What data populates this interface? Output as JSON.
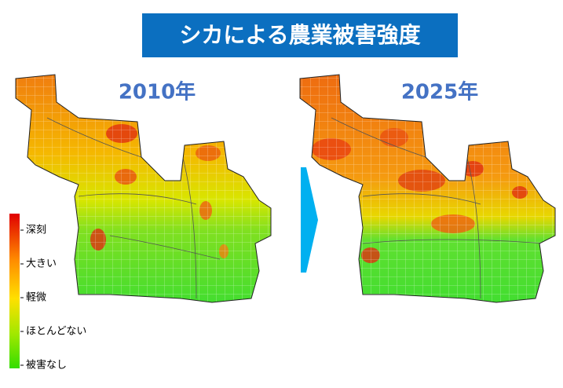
{
  "title": "シカによる農業被害強度",
  "maps": [
    {
      "label": "2010年"
    },
    {
      "label": "2025年"
    }
  ],
  "legend": {
    "levels": [
      "深刻",
      "大きい",
      "軽微",
      "ほとんどない",
      "被害なし"
    ]
  }
}
